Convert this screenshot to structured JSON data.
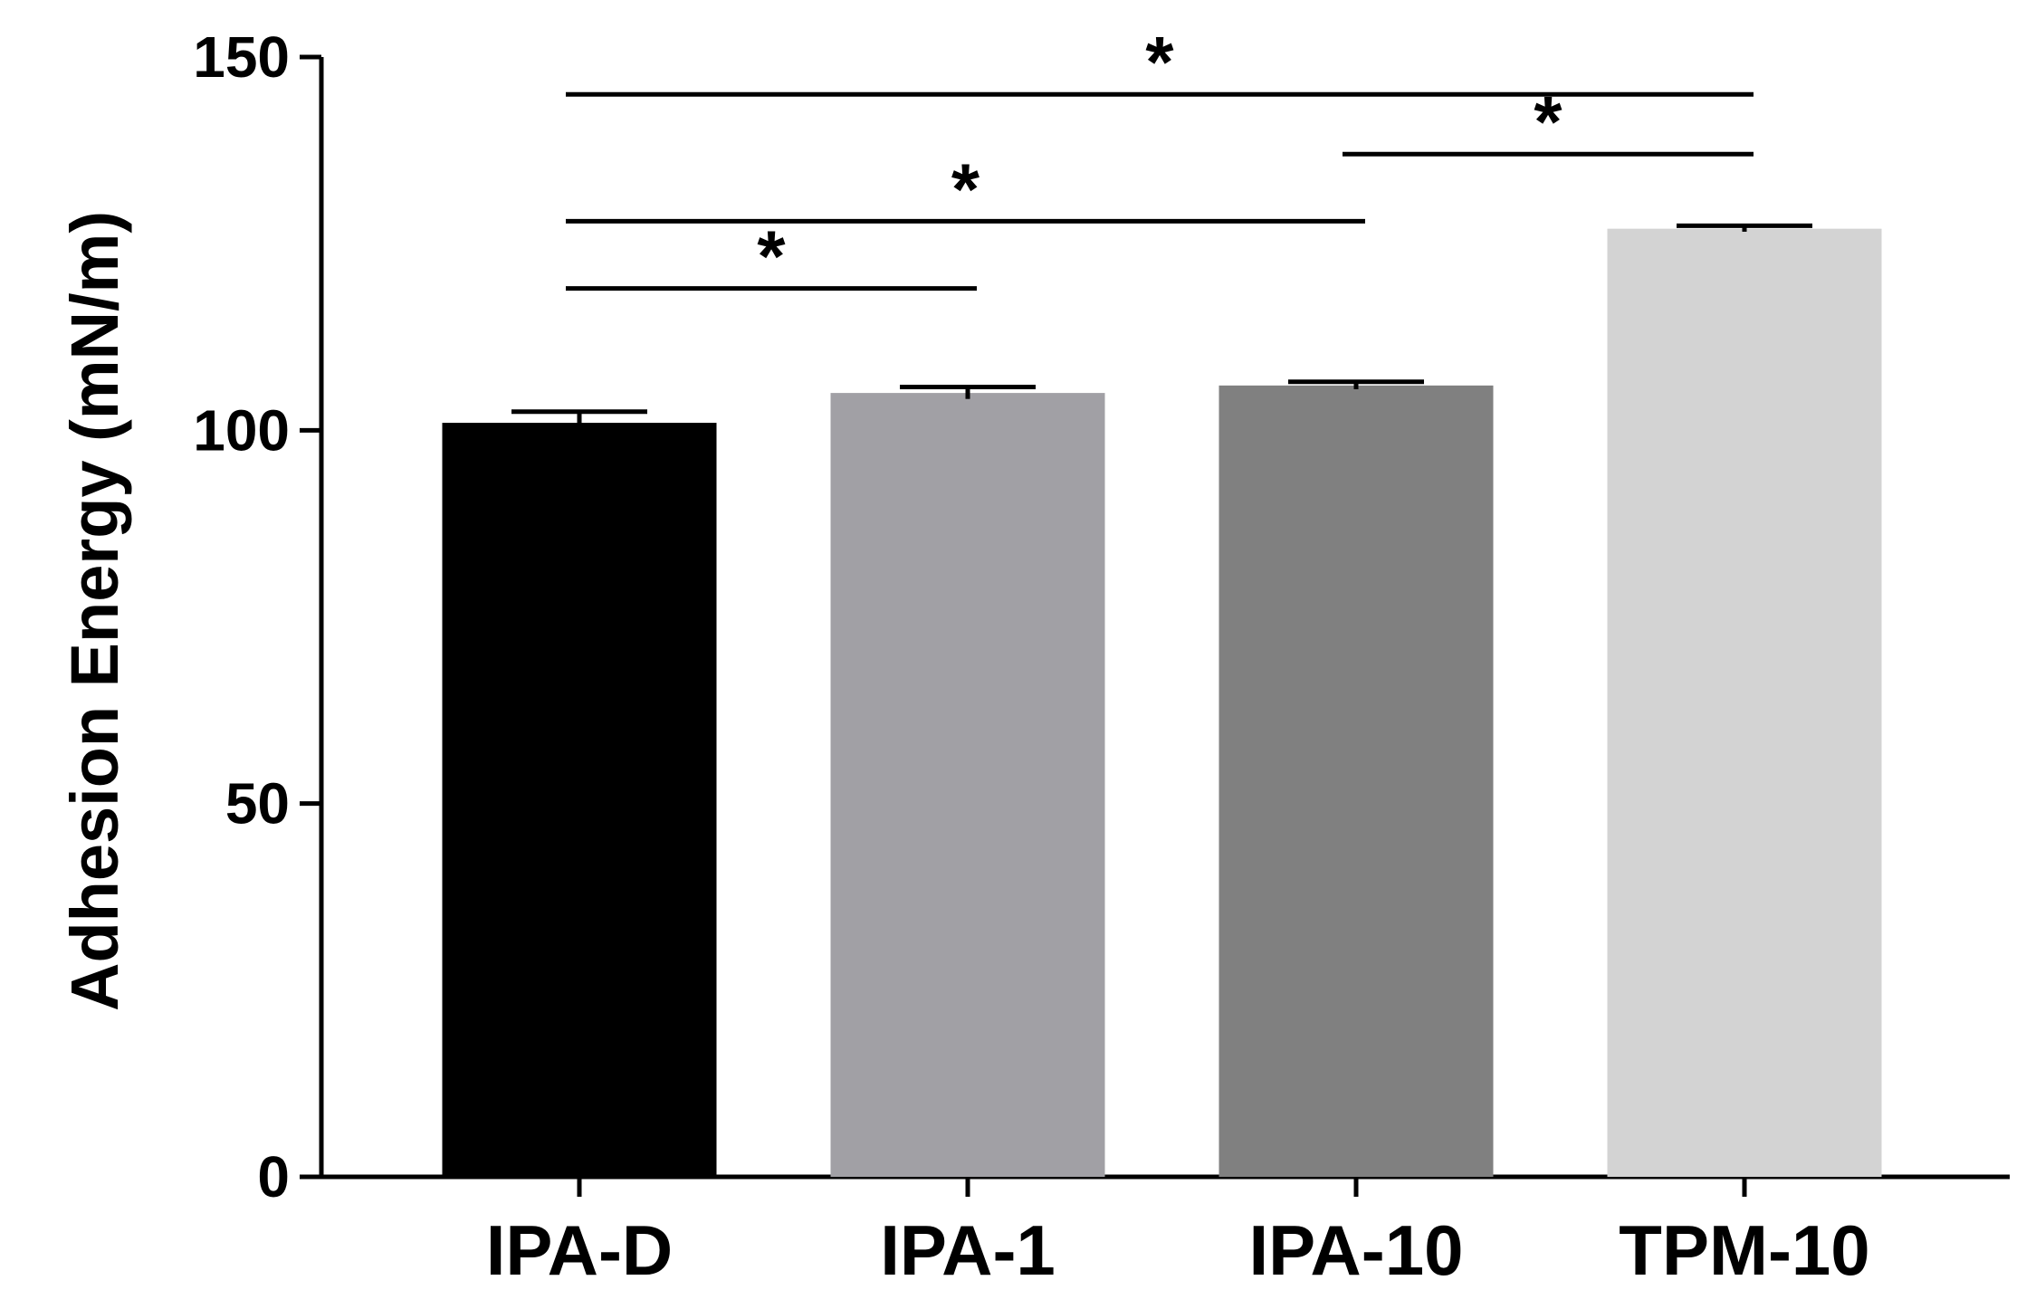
{
  "chart_data": {
    "type": "bar",
    "title": "",
    "xlabel": "",
    "ylabel": "Adhesion Energy (mN/m)",
    "ylim": [
      0,
      150
    ],
    "yticks": [
      0,
      50,
      100,
      150
    ],
    "categories": [
      "IPA-D",
      "IPA-1",
      "IPA-10",
      "TPM-10"
    ],
    "values": [
      101,
      105,
      106,
      127
    ],
    "errors": [
      1.5,
      0.8,
      0.5,
      0.4
    ],
    "bar_colors": [
      "#000000",
      "#a1a0a5",
      "#808080",
      "#d3d3d3"
    ],
    "grid": false,
    "legend": "none",
    "significance": [
      {
        "from": "IPA-D",
        "to": "IPA-1",
        "level": 119,
        "label": "*"
      },
      {
        "from": "IPA-D",
        "to": "IPA-10",
        "level": 128,
        "label": "*"
      },
      {
        "from": "IPA-10",
        "to": "TPM-10",
        "level": 137,
        "label": "*"
      },
      {
        "from": "IPA-D",
        "to": "TPM-10",
        "level": 145,
        "label": "*"
      }
    ]
  }
}
